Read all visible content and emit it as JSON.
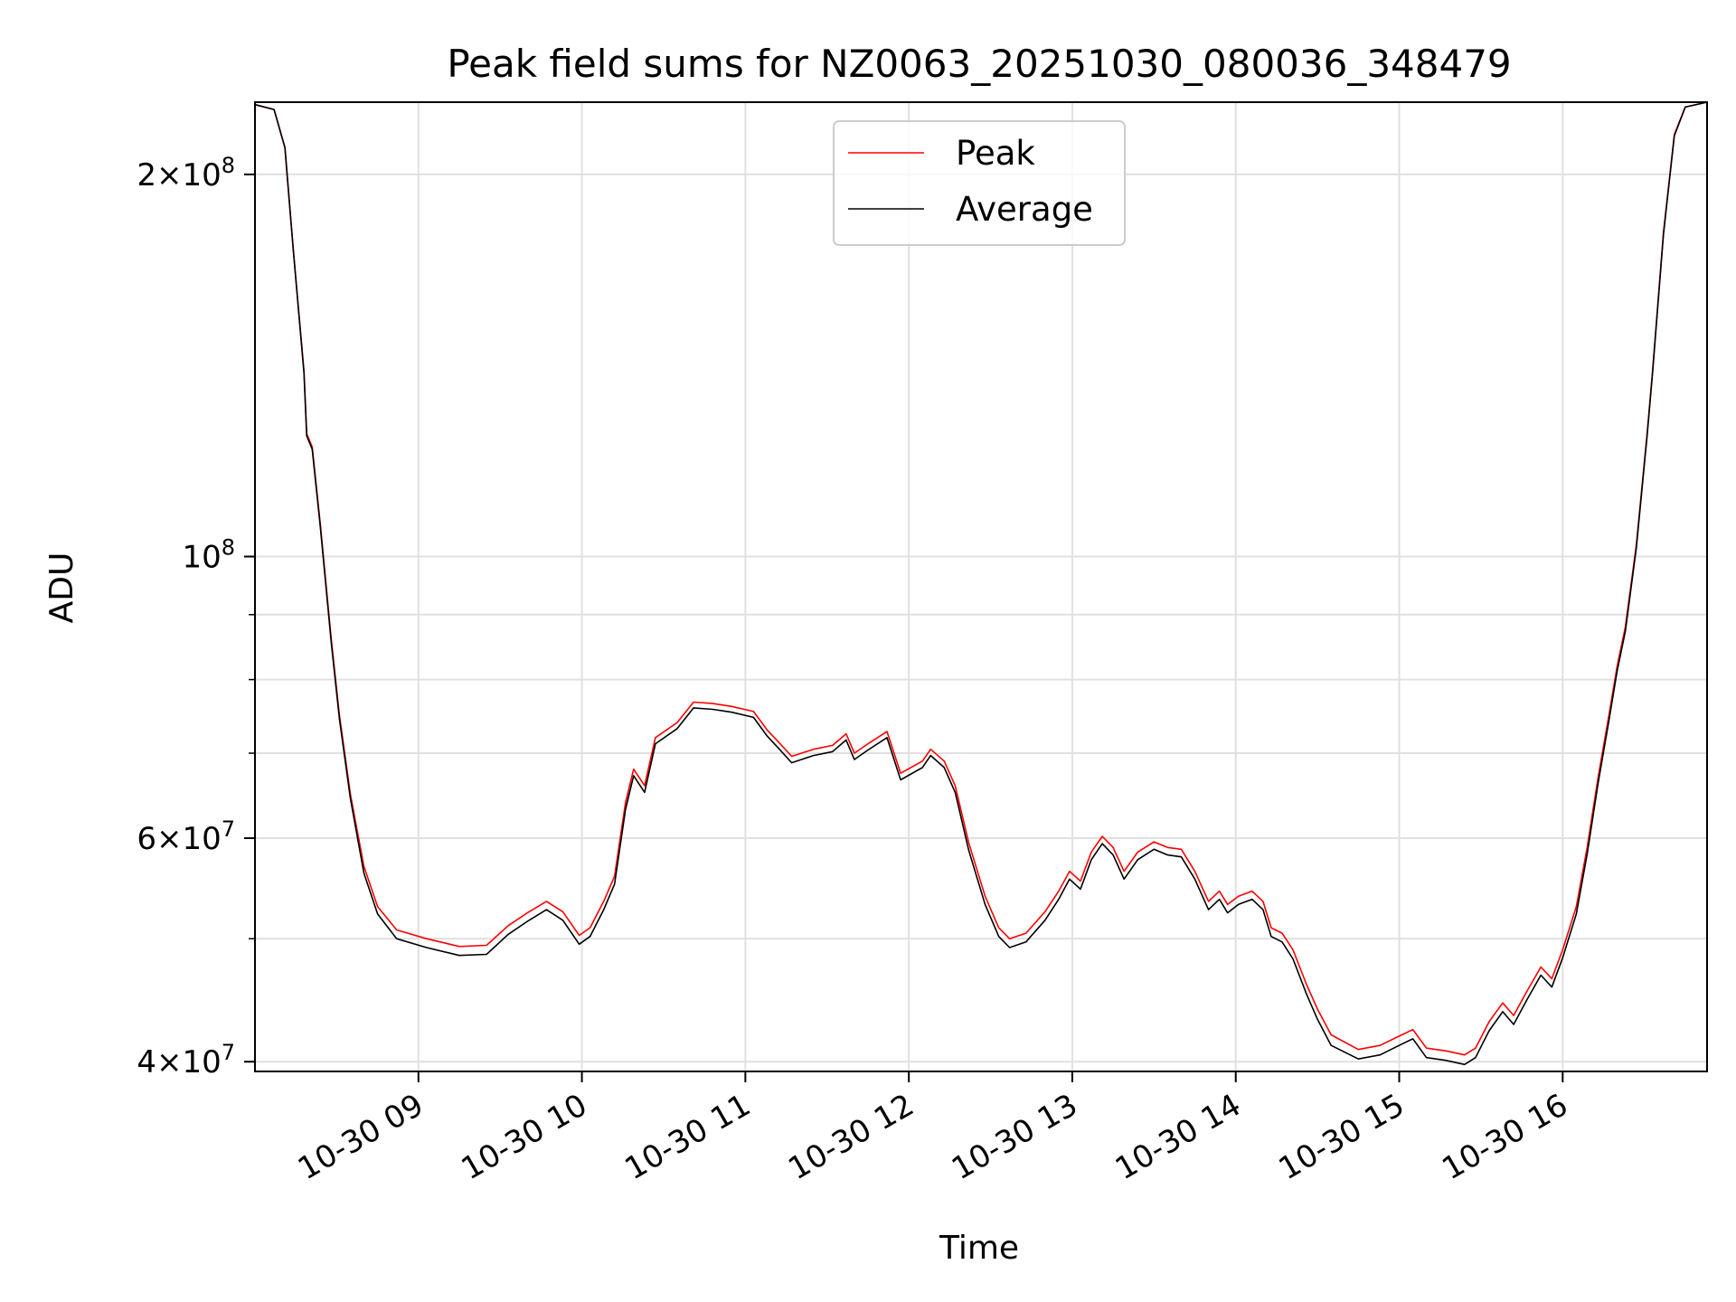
{
  "chart_data": {
    "type": "line",
    "title": "Peak field sums for NZ0063_20251030_080036_348479",
    "xlabel": "Time",
    "ylabel": "ADU",
    "y_scale": "log",
    "ylim": [
      39300000,
      228000000
    ],
    "xlim": [
      "2025-10-30 08:00",
      "2025-10-30 16:53"
    ],
    "x_ticks": [
      "10-30 09",
      "10-30 10",
      "10-30 11",
      "10-30 12",
      "10-30 13",
      "10-30 14",
      "10-30 15",
      "10-30 16"
    ],
    "x_tick_times": [
      "2025-10-30 09:00",
      "2025-10-30 10:00",
      "2025-10-30 11:00",
      "2025-10-30 12:00",
      "2025-10-30 13:00",
      "2025-10-30 14:00",
      "2025-10-30 15:00",
      "2025-10-30 16:00"
    ],
    "y_ticks_major": [
      {
        "value": 40000000,
        "mantissa": "4",
        "exp": "7"
      },
      {
        "value": 60000000,
        "mantissa": "6",
        "exp": "7"
      },
      {
        "value": 100000000,
        "mantissa": "",
        "exp": "8"
      },
      {
        "value": 200000000,
        "mantissa": "2",
        "exp": "8"
      }
    ],
    "y_gridlines": [
      40000000,
      50000000,
      60000000,
      70000000,
      80000000,
      90000000,
      100000000,
      200000000
    ],
    "grid": true,
    "legend_position": "top-center",
    "series": [
      {
        "name": "Peak",
        "color": "#ff0000",
        "points": [
          [
            "2025-10-30 08:00",
            227000000
          ],
          [
            "2025-10-30 08:07",
            225000000
          ],
          [
            "2025-10-30 08:11",
            210000000
          ],
          [
            "2025-10-30 08:14",
            175000000
          ],
          [
            "2025-10-30 08:18",
            140000000
          ],
          [
            "2025-10-30 08:19",
            125000000
          ],
          [
            "2025-10-30 08:21",
            122000000
          ],
          [
            "2025-10-30 08:24",
            106000000
          ],
          [
            "2025-10-30 08:28",
            86000000
          ],
          [
            "2025-10-30 08:31",
            75000000
          ],
          [
            "2025-10-30 08:35",
            65000000
          ],
          [
            "2025-10-30 08:40",
            57000000
          ],
          [
            "2025-10-30 08:45",
            53000000
          ],
          [
            "2025-10-30 08:52",
            50800000
          ],
          [
            "2025-10-30 09:03",
            50000000
          ],
          [
            "2025-10-30 09:15",
            49300000
          ],
          [
            "2025-10-30 09:25",
            49400000
          ],
          [
            "2025-10-30 09:33",
            51200000
          ],
          [
            "2025-10-30 09:40",
            52400000
          ],
          [
            "2025-10-30 09:47",
            53500000
          ],
          [
            "2025-10-30 09:53",
            52500000
          ],
          [
            "2025-10-30 09:59",
            50300000
          ],
          [
            "2025-10-30 10:03",
            51000000
          ],
          [
            "2025-10-30 10:08",
            53500000
          ],
          [
            "2025-10-30 10:12",
            56000000
          ],
          [
            "2025-10-30 10:16",
            64000000
          ],
          [
            "2025-10-30 10:19",
            68000000
          ],
          [
            "2025-10-30 10:23",
            66000000
          ],
          [
            "2025-10-30 10:27",
            72000000
          ],
          [
            "2025-10-30 10:35",
            74000000
          ],
          [
            "2025-10-30 10:41",
            76800000
          ],
          [
            "2025-10-30 10:48",
            76600000
          ],
          [
            "2025-10-30 10:55",
            76200000
          ],
          [
            "2025-10-30 11:03",
            75500000
          ],
          [
            "2025-10-30 11:08",
            73000000
          ],
          [
            "2025-10-30 11:12",
            71500000
          ],
          [
            "2025-10-30 11:17",
            69600000
          ],
          [
            "2025-10-30 11:25",
            70500000
          ],
          [
            "2025-10-30 11:32",
            71000000
          ],
          [
            "2025-10-30 11:37",
            72500000
          ],
          [
            "2025-10-30 11:40",
            70000000
          ],
          [
            "2025-10-30 11:45",
            71200000
          ],
          [
            "2025-10-30 11:52",
            72800000
          ],
          [
            "2025-10-30 11:57",
            67500000
          ],
          [
            "2025-10-30 12:05",
            69000000
          ],
          [
            "2025-10-30 12:08",
            70500000
          ],
          [
            "2025-10-30 12:13",
            69000000
          ],
          [
            "2025-10-30 12:17",
            66000000
          ],
          [
            "2025-10-30 12:22",
            59500000
          ],
          [
            "2025-10-30 12:28",
            54000000
          ],
          [
            "2025-10-30 12:33",
            51000000
          ],
          [
            "2025-10-30 12:37",
            50000000
          ],
          [
            "2025-10-30 12:43",
            50500000
          ],
          [
            "2025-10-30 12:50",
            52500000
          ],
          [
            "2025-10-30 12:55",
            54500000
          ],
          [
            "2025-10-30 12:59",
            56500000
          ],
          [
            "2025-10-30 13:03",
            55500000
          ],
          [
            "2025-10-30 13:07",
            58500000
          ],
          [
            "2025-10-30 13:11",
            60200000
          ],
          [
            "2025-10-30 13:15",
            59000000
          ],
          [
            "2025-10-30 13:19",
            56500000
          ],
          [
            "2025-10-30 13:24",
            58500000
          ],
          [
            "2025-10-30 13:30",
            59600000
          ],
          [
            "2025-10-30 13:35",
            59000000
          ],
          [
            "2025-10-30 13:40",
            58800000
          ],
          [
            "2025-10-30 13:45",
            56500000
          ],
          [
            "2025-10-30 13:50",
            53500000
          ],
          [
            "2025-10-30 13:54",
            54500000
          ],
          [
            "2025-10-30 13:57",
            53200000
          ],
          [
            "2025-10-30 14:01",
            54000000
          ],
          [
            "2025-10-30 14:06",
            54500000
          ],
          [
            "2025-10-30 14:10",
            53500000
          ],
          [
            "2025-10-30 14:13",
            51000000
          ],
          [
            "2025-10-30 14:17",
            50500000
          ],
          [
            "2025-10-30 14:21",
            49000000
          ],
          [
            "2025-10-30 14:26",
            46000000
          ],
          [
            "2025-10-30 14:30",
            44000000
          ],
          [
            "2025-10-30 14:35",
            42000000
          ],
          [
            "2025-10-30 14:45",
            40900000
          ],
          [
            "2025-10-30 14:53",
            41200000
          ],
          [
            "2025-10-30 15:00",
            41900000
          ],
          [
            "2025-10-30 15:05",
            42400000
          ],
          [
            "2025-10-30 15:10",
            41000000
          ],
          [
            "2025-10-30 15:17",
            40800000
          ],
          [
            "2025-10-30 15:24",
            40500000
          ],
          [
            "2025-10-30 15:28",
            41000000
          ],
          [
            "2025-10-30 15:33",
            43000000
          ],
          [
            "2025-10-30 15:38",
            44500000
          ],
          [
            "2025-10-30 15:42",
            43500000
          ],
          [
            "2025-10-30 15:47",
            45500000
          ],
          [
            "2025-10-30 15:52",
            47500000
          ],
          [
            "2025-10-30 15:56",
            46500000
          ],
          [
            "2025-10-30 16:00",
            49000000
          ],
          [
            "2025-10-30 16:05",
            53000000
          ],
          [
            "2025-10-30 16:09",
            59000000
          ],
          [
            "2025-10-30 16:13",
            67000000
          ],
          [
            "2025-10-30 16:17",
            75000000
          ],
          [
            "2025-10-30 16:20",
            82000000
          ],
          [
            "2025-10-30 16:23",
            88000000
          ],
          [
            "2025-10-30 16:27",
            102000000
          ],
          [
            "2025-10-30 16:31",
            125000000
          ],
          [
            "2025-10-30 16:33",
            140000000
          ],
          [
            "2025-10-30 16:37",
            180000000
          ],
          [
            "2025-10-30 16:41",
            215000000
          ],
          [
            "2025-10-30 16:45",
            226000000
          ],
          [
            "2025-10-30 16:53",
            228000000
          ]
        ]
      },
      {
        "name": "Average",
        "color": "#000000",
        "points": [
          [
            "2025-10-30 08:00",
            227000000
          ],
          [
            "2025-10-30 08:07",
            225000000
          ],
          [
            "2025-10-30 08:11",
            210000000
          ],
          [
            "2025-10-30 08:14",
            175000000
          ],
          [
            "2025-10-30 08:18",
            139500000
          ],
          [
            "2025-10-30 08:19",
            124500000
          ],
          [
            "2025-10-30 08:21",
            121500000
          ],
          [
            "2025-10-30 08:24",
            105500000
          ],
          [
            "2025-10-30 08:28",
            85500000
          ],
          [
            "2025-10-30 08:31",
            74500000
          ],
          [
            "2025-10-30 08:35",
            64500000
          ],
          [
            "2025-10-30 08:40",
            56300000
          ],
          [
            "2025-10-30 08:45",
            52300000
          ],
          [
            "2025-10-30 08:52",
            50000000
          ],
          [
            "2025-10-30 09:03",
            49200000
          ],
          [
            "2025-10-30 09:15",
            48500000
          ],
          [
            "2025-10-30 09:25",
            48600000
          ],
          [
            "2025-10-30 09:33",
            50400000
          ],
          [
            "2025-10-30 09:40",
            51600000
          ],
          [
            "2025-10-30 09:47",
            52700000
          ],
          [
            "2025-10-30 09:53",
            51700000
          ],
          [
            "2025-10-30 09:59",
            49500000
          ],
          [
            "2025-10-30 10:03",
            50200000
          ],
          [
            "2025-10-30 10:08",
            52700000
          ],
          [
            "2025-10-30 10:12",
            55200000
          ],
          [
            "2025-10-30 10:16",
            63200000
          ],
          [
            "2025-10-30 10:19",
            67200000
          ],
          [
            "2025-10-30 10:23",
            65200000
          ],
          [
            "2025-10-30 10:27",
            71200000
          ],
          [
            "2025-10-30 10:35",
            73200000
          ],
          [
            "2025-10-30 10:41",
            76000000
          ],
          [
            "2025-10-30 10:48",
            75800000
          ],
          [
            "2025-10-30 10:55",
            75400000
          ],
          [
            "2025-10-30 11:03",
            74700000
          ],
          [
            "2025-10-30 11:08",
            72200000
          ],
          [
            "2025-10-30 11:12",
            70700000
          ],
          [
            "2025-10-30 11:17",
            68800000
          ],
          [
            "2025-10-30 11:25",
            69700000
          ],
          [
            "2025-10-30 11:32",
            70200000
          ],
          [
            "2025-10-30 11:37",
            71700000
          ],
          [
            "2025-10-30 11:40",
            69200000
          ],
          [
            "2025-10-30 11:45",
            70400000
          ],
          [
            "2025-10-30 11:52",
            72000000
          ],
          [
            "2025-10-30 11:57",
            66700000
          ],
          [
            "2025-10-30 12:05",
            68200000
          ],
          [
            "2025-10-30 12:08",
            69700000
          ],
          [
            "2025-10-30 12:13",
            68200000
          ],
          [
            "2025-10-30 12:17",
            65200000
          ],
          [
            "2025-10-30 12:22",
            58700000
          ],
          [
            "2025-10-30 12:28",
            53200000
          ],
          [
            "2025-10-30 12:33",
            50200000
          ],
          [
            "2025-10-30 12:37",
            49200000
          ],
          [
            "2025-10-30 12:43",
            49700000
          ],
          [
            "2025-10-30 12:50",
            51700000
          ],
          [
            "2025-10-30 12:55",
            53700000
          ],
          [
            "2025-10-30 12:59",
            55700000
          ],
          [
            "2025-10-30 13:03",
            54700000
          ],
          [
            "2025-10-30 13:07",
            57700000
          ],
          [
            "2025-10-30 13:11",
            59400000
          ],
          [
            "2025-10-30 13:15",
            58200000
          ],
          [
            "2025-10-30 13:19",
            55700000
          ],
          [
            "2025-10-30 13:24",
            57700000
          ],
          [
            "2025-10-30 13:30",
            58800000
          ],
          [
            "2025-10-30 13:35",
            58200000
          ],
          [
            "2025-10-30 13:40",
            58000000
          ],
          [
            "2025-10-30 13:45",
            55700000
          ],
          [
            "2025-10-30 13:50",
            52700000
          ],
          [
            "2025-10-30 13:54",
            53700000
          ],
          [
            "2025-10-30 13:57",
            52400000
          ],
          [
            "2025-10-30 14:01",
            53200000
          ],
          [
            "2025-10-30 14:06",
            53700000
          ],
          [
            "2025-10-30 14:10",
            52700000
          ],
          [
            "2025-10-30 14:13",
            50200000
          ],
          [
            "2025-10-30 14:17",
            49700000
          ],
          [
            "2025-10-30 14:21",
            48200000
          ],
          [
            "2025-10-30 14:26",
            45200000
          ],
          [
            "2025-10-30 14:30",
            43200000
          ],
          [
            "2025-10-30 14:35",
            41200000
          ],
          [
            "2025-10-30 14:45",
            40200000
          ],
          [
            "2025-10-30 14:53",
            40500000
          ],
          [
            "2025-10-30 15:00",
            41200000
          ],
          [
            "2025-10-30 15:05",
            41700000
          ],
          [
            "2025-10-30 15:10",
            40300000
          ],
          [
            "2025-10-30 15:17",
            40100000
          ],
          [
            "2025-10-30 15:24",
            39800000
          ],
          [
            "2025-10-30 15:28",
            40300000
          ],
          [
            "2025-10-30 15:33",
            42300000
          ],
          [
            "2025-10-30 15:38",
            43800000
          ],
          [
            "2025-10-30 15:42",
            42800000
          ],
          [
            "2025-10-30 15:47",
            44800000
          ],
          [
            "2025-10-30 15:52",
            46800000
          ],
          [
            "2025-10-30 15:56",
            45800000
          ],
          [
            "2025-10-30 16:00",
            48300000
          ],
          [
            "2025-10-30 16:05",
            52300000
          ],
          [
            "2025-10-30 16:09",
            58300000
          ],
          [
            "2025-10-30 16:13",
            66300000
          ],
          [
            "2025-10-30 16:17",
            74300000
          ],
          [
            "2025-10-30 16:20",
            81300000
          ],
          [
            "2025-10-30 16:23",
            87300000
          ],
          [
            "2025-10-30 16:27",
            101500000
          ],
          [
            "2025-10-30 16:31",
            124500000
          ],
          [
            "2025-10-30 16:33",
            139500000
          ],
          [
            "2025-10-30 16:37",
            179500000
          ],
          [
            "2025-10-30 16:41",
            214500000
          ],
          [
            "2025-10-30 16:45",
            226000000
          ],
          [
            "2025-10-30 16:53",
            228000000
          ]
        ]
      }
    ]
  }
}
